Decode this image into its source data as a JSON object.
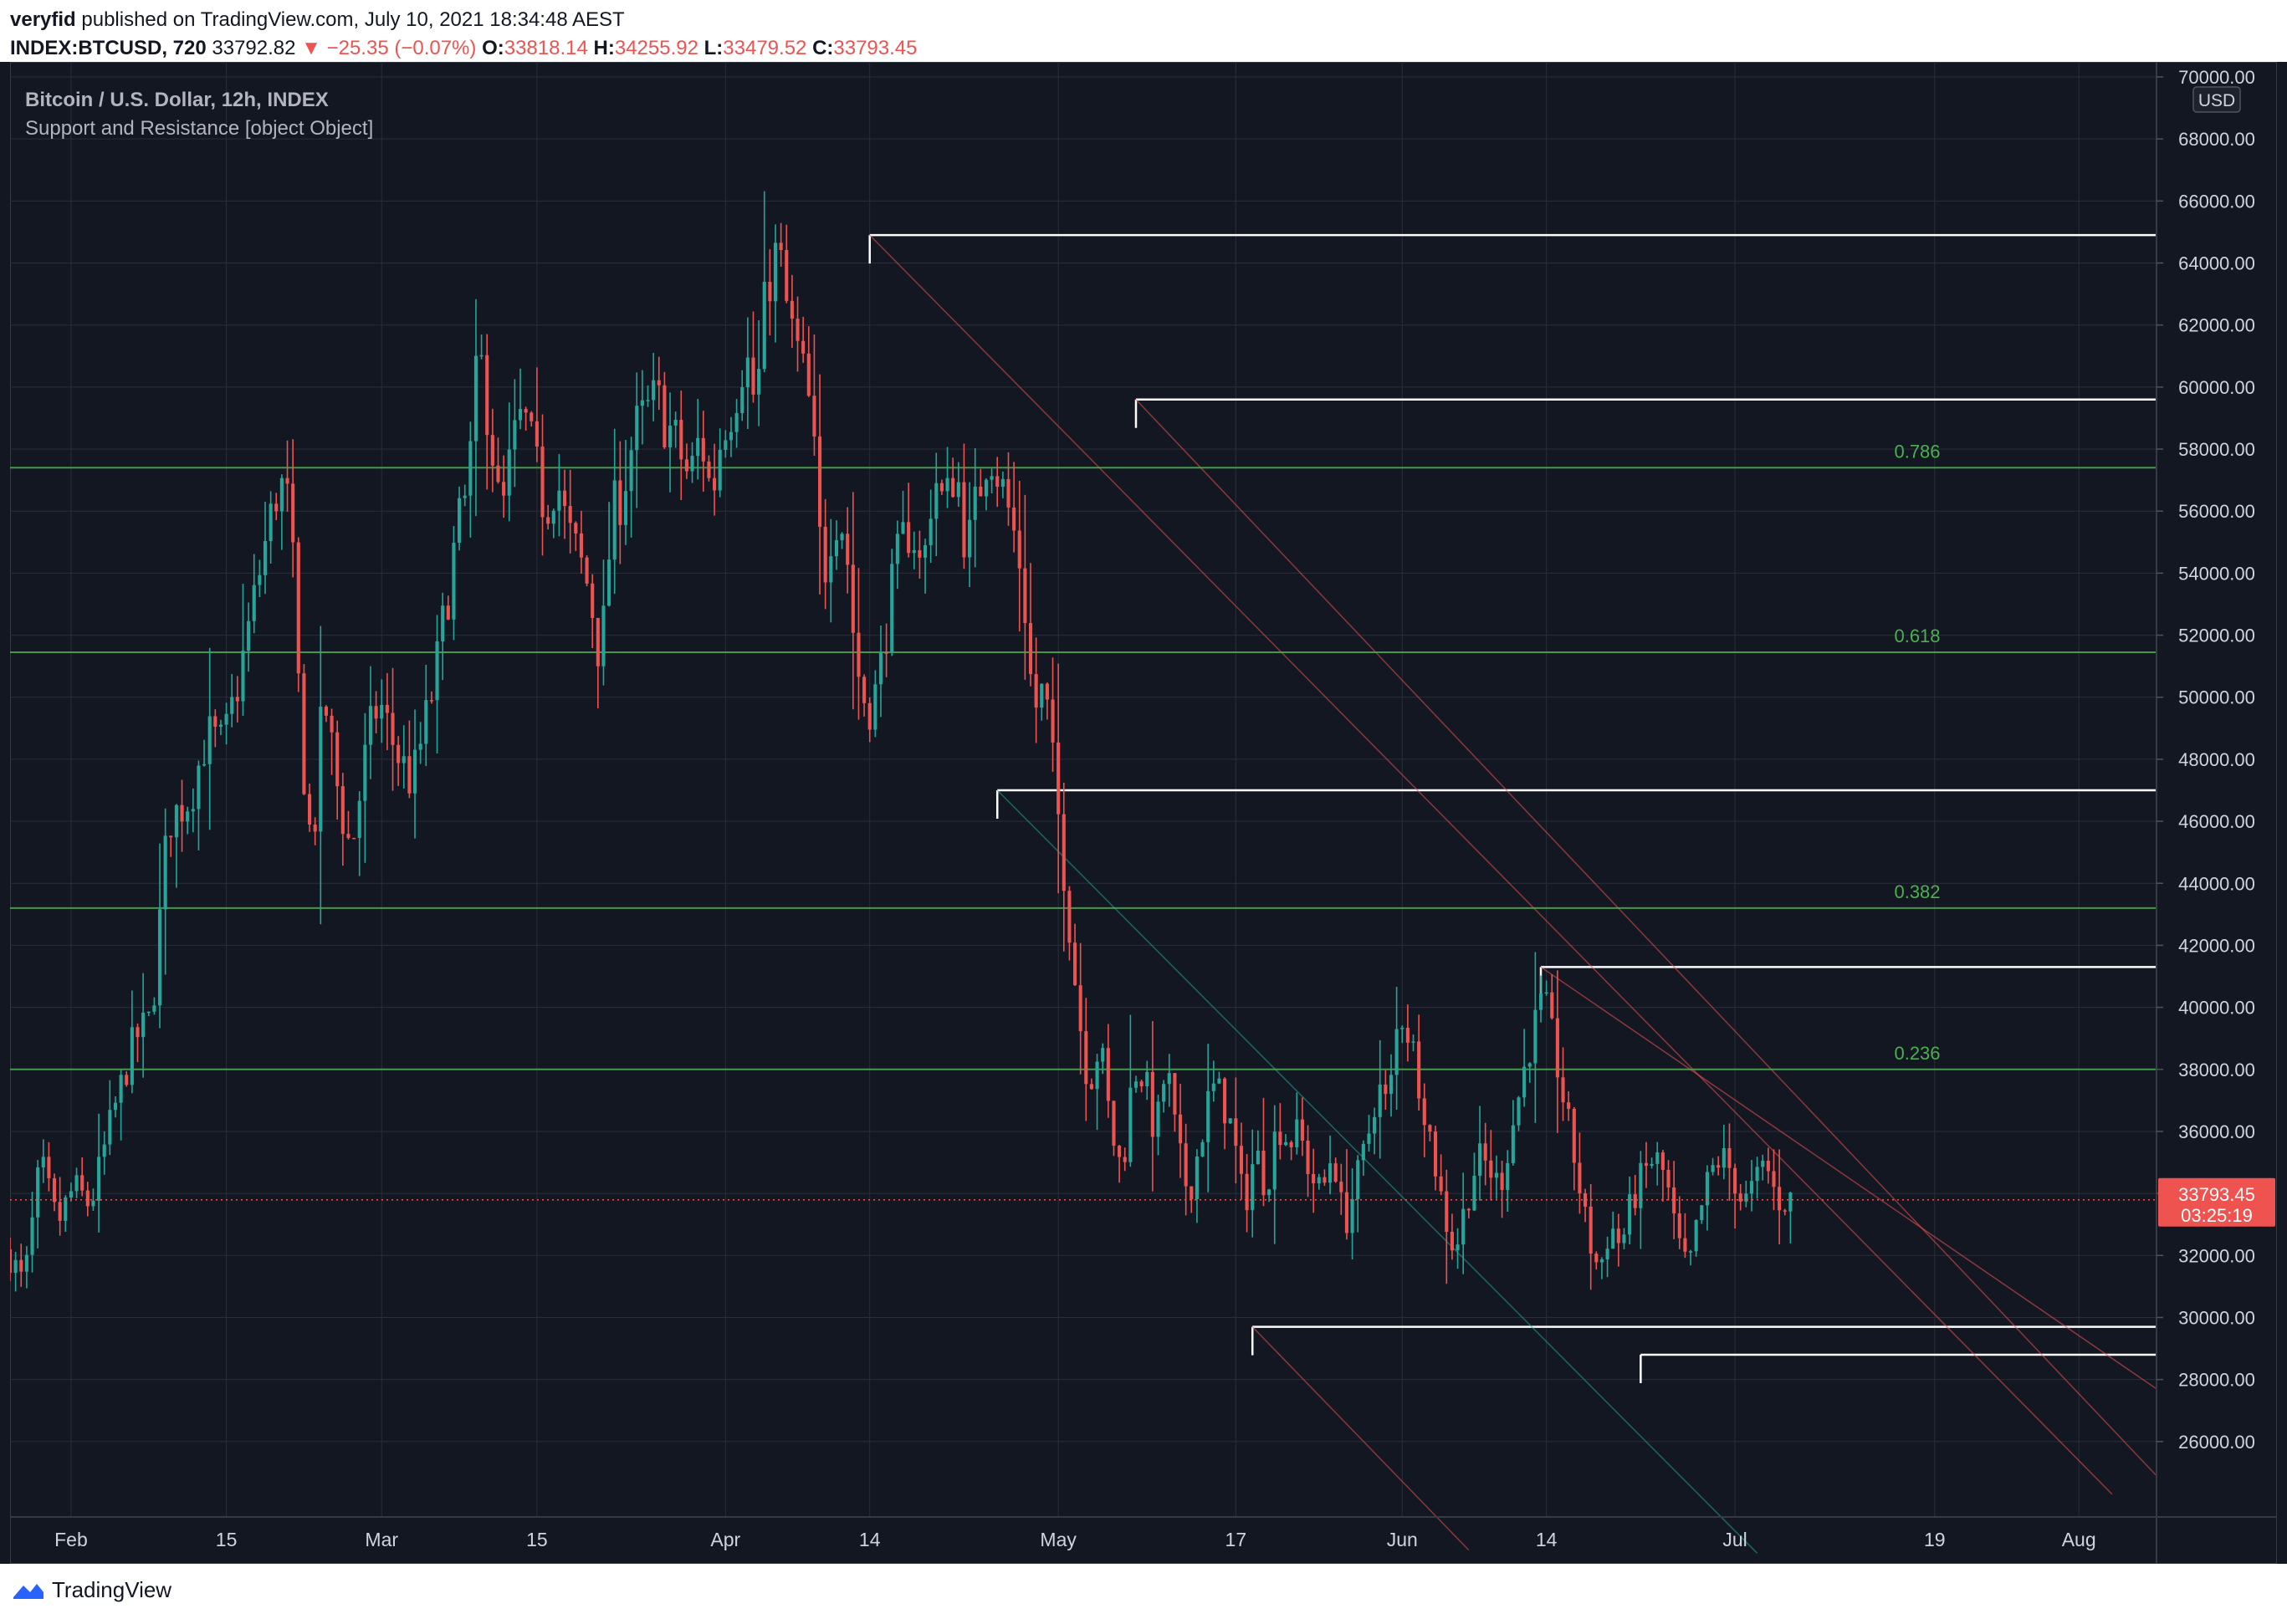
{
  "publish": {
    "author": "veryfid",
    "text": "published on TradingView.com, July 10, 2021 18:34:48 AEST"
  },
  "ohlc": {
    "symbol": "INDEX:BTCUSD, 720",
    "last": "33792.82",
    "change": "▼ −25.35 (−0.07%)",
    "o_label": "O:",
    "o": "33818.14",
    "h_label": "H:",
    "h": "34255.92",
    "l_label": "L:",
    "l": "33479.52",
    "c_label": "C:",
    "c": "33793.45"
  },
  "legend": {
    "title": "Bitcoin / U.S. Dollar, 12h, INDEX",
    "indicator": "Support and Resistance [object Object]"
  },
  "footer": {
    "brand": "TradingView"
  },
  "colors": {
    "background": "#131722",
    "up": "#26a69a",
    "down": "#ef5350",
    "grid": "#2a2e39",
    "fib": "#4caf50",
    "sr": "#ffffff"
  },
  "chart_data": {
    "type": "candlestick",
    "title": "Bitcoin / U.S. Dollar, 12h, INDEX",
    "currency": "USD",
    "ylim": [
      24000,
      70000
    ],
    "y_ticks": [
      "70000.00",
      "68000.00",
      "66000.00",
      "64000.00",
      "62000.00",
      "60000.00",
      "58000.00",
      "56000.00",
      "54000.00",
      "52000.00",
      "50000.00",
      "48000.00",
      "46000.00",
      "44000.00",
      "42000.00",
      "40000.00",
      "38000.00",
      "36000.00",
      "34000.00",
      "32000.00",
      "30000.00",
      "28000.00",
      "26000.00"
    ],
    "x_ticks": [
      {
        "label": "Feb",
        "day": 32
      },
      {
        "label": "15",
        "day": 46
      },
      {
        "label": "Mar",
        "day": 60
      },
      {
        "label": "15",
        "day": 74
      },
      {
        "label": "Apr",
        "day": 91
      },
      {
        "label": "14",
        "day": 104
      },
      {
        "label": "May",
        "day": 121
      },
      {
        "label": "17",
        "day": 137
      },
      {
        "label": "Jun",
        "day": 152
      },
      {
        "label": "14",
        "day": 165
      },
      {
        "label": "Jul",
        "day": 182
      },
      {
        "label": "19",
        "day": 200
      },
      {
        "label": "Aug",
        "day": 213
      }
    ],
    "day_range": [
      26.5,
      220
    ],
    "last_price": {
      "value": 33793.45,
      "label": "33793.45",
      "countdown": "03:25:19"
    },
    "fib_levels": [
      {
        "ratio": "0.786",
        "price": 57400
      },
      {
        "ratio": "0.618",
        "price": 51450
      },
      {
        "ratio": "0.382",
        "price": 43200
      },
      {
        "ratio": "0.236",
        "price": 38000
      }
    ],
    "sr_levels": [
      {
        "start_day": 104.0,
        "price": 64900
      },
      {
        "start_day": 128.0,
        "price": 59600
      },
      {
        "start_day": 115.5,
        "price": 47000
      },
      {
        "start_day": 164.5,
        "price": 41300
      },
      {
        "start_day": 138.5,
        "price": 29700
      },
      {
        "start_day": 173.5,
        "price": 28800
      }
    ],
    "trend_lines": [
      {
        "color": "down",
        "p1": [
          104.0,
          64900
        ],
        "p2": [
          216.0,
          24300
        ]
      },
      {
        "color": "down",
        "p1": [
          128.0,
          59600
        ],
        "p2": [
          220.0,
          24900
        ]
      },
      {
        "color": "down",
        "p1": [
          164.5,
          41300
        ],
        "p2": [
          220.0,
          27700
        ]
      },
      {
        "color": "up",
        "p1": [
          115.5,
          47000
        ],
        "p2": [
          184.0,
          22400
        ]
      },
      {
        "color": "down",
        "p1": [
          138.5,
          29700
        ],
        "p2": [
          158.0,
          22500
        ]
      }
    ],
    "anchors": [
      [
        26.5,
        32200
      ],
      [
        28,
        31000
      ],
      [
        29.5,
        35000
      ],
      [
        31,
        33000
      ],
      [
        32.5,
        34200
      ],
      [
        34,
        33600
      ],
      [
        36,
        36500
      ],
      [
        38,
        39000
      ],
      [
        39.5,
        39600
      ],
      [
        41,
        46000
      ],
      [
        43,
        46800
      ],
      [
        44.5,
        48800
      ],
      [
        46,
        48400
      ],
      [
        47.5,
        50800
      ],
      [
        49.5,
        54500
      ],
      [
        51,
        57000
      ],
      [
        52,
        56000
      ],
      [
        53,
        48500
      ],
      [
        54,
        44800
      ],
      [
        55,
        50200
      ],
      [
        56.5,
        46500
      ],
      [
        57.5,
        45000
      ],
      [
        59,
        48600
      ],
      [
        60,
        49900
      ],
      [
        61.5,
        48300
      ],
      [
        63,
        47200
      ],
      [
        65,
        50500
      ],
      [
        67,
        55200
      ],
      [
        68,
        56600
      ],
      [
        69,
        61200
      ],
      [
        70,
        58800
      ],
      [
        71,
        55500
      ],
      [
        72,
        58000
      ],
      [
        73,
        59100
      ],
      [
        74,
        57600
      ],
      [
        75,
        56000
      ],
      [
        76,
        57200
      ],
      [
        77,
        55300
      ],
      [
        78,
        54500
      ],
      [
        79,
        53400
      ],
      [
        80,
        51100
      ],
      [
        81,
        55800
      ],
      [
        82,
        56700
      ],
      [
        83,
        58500
      ],
      [
        85,
        59600
      ],
      [
        87,
        58000
      ],
      [
        88,
        57000
      ],
      [
        89,
        58500
      ],
      [
        90,
        56400
      ],
      [
        91,
        58800
      ],
      [
        92,
        59600
      ],
      [
        93,
        61200
      ],
      [
        94,
        59300
      ],
      [
        95,
        63400
      ],
      [
        96,
        64400
      ],
      [
        97,
        62000
      ],
      [
        98,
        60800
      ],
      [
        99,
        59000
      ],
      [
        100,
        53700
      ],
      [
        101,
        56000
      ],
      [
        102,
        55500
      ],
      [
        103,
        51100
      ],
      [
        104,
        49600
      ],
      [
        105,
        50300
      ],
      [
        106,
        53000
      ],
      [
        107,
        54800
      ],
      [
        108,
        55600
      ],
      [
        109,
        53800
      ],
      [
        110,
        57300
      ],
      [
        111,
        56000
      ],
      [
        112,
        57600
      ],
      [
        113,
        54600
      ],
      [
        114,
        56500
      ],
      [
        115,
        58200
      ],
      [
        116,
        57000
      ],
      [
        117,
        55700
      ],
      [
        118,
        54000
      ],
      [
        119,
        49500
      ],
      [
        120,
        50300
      ],
      [
        121,
        47000
      ],
      [
        122,
        43600
      ],
      [
        123,
        40000
      ],
      [
        124,
        37500
      ],
      [
        125,
        38900
      ],
      [
        126,
        36000
      ],
      [
        127,
        34700
      ],
      [
        128,
        38000
      ],
      [
        129,
        37800
      ],
      [
        130,
        35800
      ],
      [
        131,
        38200
      ],
      [
        132,
        35400
      ],
      [
        133,
        34000
      ],
      [
        134,
        35600
      ],
      [
        135,
        37400
      ],
      [
        136,
        37100
      ],
      [
        137,
        35900
      ],
      [
        138,
        33500
      ],
      [
        139,
        35400
      ],
      [
        140,
        34200
      ],
      [
        141,
        36300
      ],
      [
        142,
        35700
      ],
      [
        143,
        35900
      ],
      [
        144,
        34600
      ],
      [
        145,
        33900
      ],
      [
        146,
        35500
      ],
      [
        147,
        32900
      ],
      [
        148,
        34200
      ],
      [
        149,
        35500
      ],
      [
        150,
        37500
      ],
      [
        151,
        36700
      ],
      [
        152,
        40000
      ],
      [
        153,
        39000
      ],
      [
        154,
        37300
      ],
      [
        155,
        35400
      ],
      [
        156,
        33400
      ],
      [
        157,
        32100
      ],
      [
        158,
        33700
      ],
      [
        159,
        35100
      ],
      [
        160,
        34900
      ],
      [
        161,
        34200
      ],
      [
        162,
        35800
      ],
      [
        163,
        37600
      ],
      [
        164,
        39200
      ],
      [
        165,
        40200
      ],
      [
        166,
        38600
      ],
      [
        167,
        36600
      ],
      [
        168,
        34700
      ],
      [
        169,
        32600
      ],
      [
        170,
        31500
      ],
      [
        171,
        33000
      ],
      [
        172,
        32300
      ],
      [
        173,
        33800
      ],
      [
        174,
        34600
      ],
      [
        175,
        35200
      ],
      [
        176,
        34500
      ],
      [
        177,
        32500
      ],
      [
        178,
        31400
      ],
      [
        179,
        33200
      ],
      [
        180,
        34600
      ],
      [
        181,
        35200
      ],
      [
        182,
        34700
      ],
      [
        183,
        33600
      ],
      [
        184,
        34200
      ],
      [
        185,
        35000
      ],
      [
        186,
        33800
      ],
      [
        187,
        33800
      ]
    ]
  }
}
